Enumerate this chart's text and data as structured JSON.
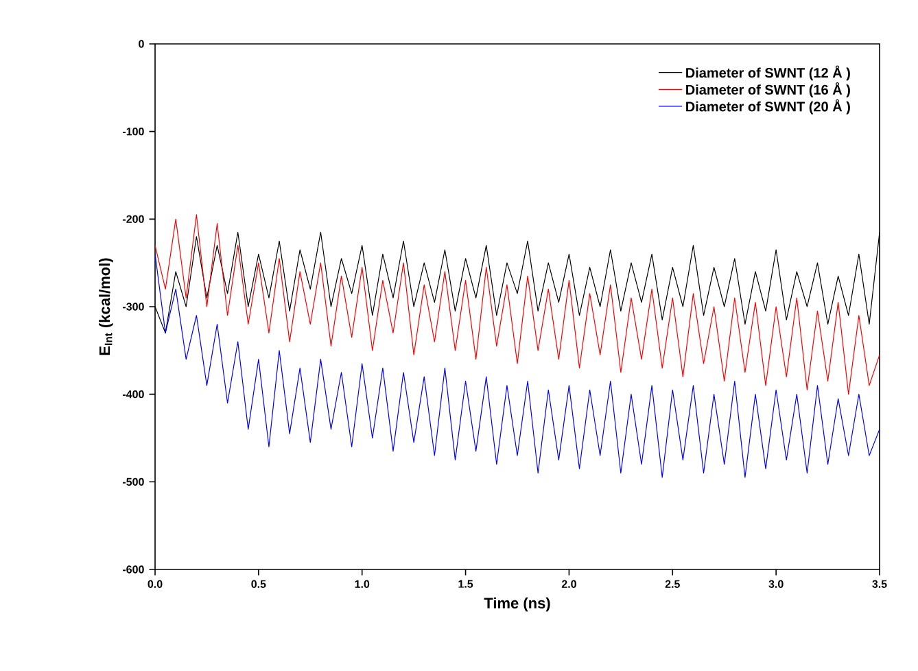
{
  "chart_data": {
    "type": "line",
    "xlabel": "Time (ns)",
    "ylabel": "E$_{Int}$ (kcal/mol)",
    "xlim": [
      0,
      3.5
    ],
    "ylim": [
      -600,
      0
    ],
    "xticks": [
      {
        "value": 0,
        "label": "0.0"
      },
      {
        "value": 0.5,
        "label": "0.5"
      },
      {
        "value": 1,
        "label": "1.0"
      },
      {
        "value": 1.5,
        "label": "1.5"
      },
      {
        "value": 2,
        "label": "2.0"
      },
      {
        "value": 2.5,
        "label": "2.5"
      },
      {
        "value": 3,
        "label": "3.0"
      },
      {
        "value": 3.5,
        "label": "3.5"
      }
    ],
    "yticks": [
      0,
      -100,
      -200,
      -300,
      -400,
      -500,
      -600
    ],
    "x": [
      0,
      0.05,
      0.1,
      0.15,
      0.2,
      0.25,
      0.3,
      0.35,
      0.4,
      0.45,
      0.5,
      0.55,
      0.6,
      0.65,
      0.7,
      0.75,
      0.8,
      0.85,
      0.9,
      0.95,
      1,
      1.05,
      1.1,
      1.15,
      1.2,
      1.25,
      1.3,
      1.35,
      1.4,
      1.45,
      1.5,
      1.55,
      1.6,
      1.65,
      1.7,
      1.75,
      1.8,
      1.85,
      1.9,
      1.95,
      2,
      2.05,
      2.1,
      2.15,
      2.2,
      2.25,
      2.3,
      2.35,
      2.4,
      2.45,
      2.5,
      2.55,
      2.6,
      2.65,
      2.7,
      2.75,
      2.8,
      2.85,
      2.9,
      2.95,
      3,
      3.05,
      3.1,
      3.15,
      3.2,
      3.25,
      3.3,
      3.35,
      3.4,
      3.45,
      3.5
    ],
    "series": [
      {
        "name": "Diameter of SWNT (12 Å )",
        "color": "#000000",
        "values": [
          -300,
          -330,
          -260,
          -300,
          -220,
          -290,
          -230,
          -285,
          -215,
          -300,
          -240,
          -290,
          -225,
          -305,
          -235,
          -280,
          -215,
          -300,
          -245,
          -285,
          -230,
          -310,
          -240,
          -290,
          -225,
          -300,
          -250,
          -295,
          -235,
          -305,
          -245,
          -290,
          -230,
          -310,
          -250,
          -285,
          -225,
          -305,
          -250,
          -295,
          -240,
          -310,
          -255,
          -300,
          -235,
          -305,
          -250,
          -295,
          -240,
          -315,
          -255,
          -300,
          -230,
          -310,
          -255,
          -300,
          -245,
          -320,
          -260,
          -305,
          -235,
          -315,
          -260,
          -300,
          -250,
          -320,
          -265,
          -310,
          -240,
          -320,
          -215
        ]
      },
      {
        "name": "Diameter of SWNT (16 Å )",
        "color": "#ff0000",
        "values": [
          -230,
          -280,
          -200,
          -290,
          -195,
          -300,
          -205,
          -310,
          -230,
          -320,
          -250,
          -330,
          -245,
          -340,
          -260,
          -320,
          -250,
          -345,
          -265,
          -335,
          -255,
          -350,
          -270,
          -330,
          -250,
          -355,
          -275,
          -340,
          -260,
          -350,
          -270,
          -360,
          -255,
          -345,
          -275,
          -365,
          -265,
          -350,
          -280,
          -360,
          -270,
          -370,
          -285,
          -355,
          -275,
          -375,
          -290,
          -360,
          -280,
          -370,
          -290,
          -380,
          -285,
          -365,
          -300,
          -385,
          -290,
          -375,
          -295,
          -390,
          -300,
          -380,
          -290,
          -395,
          -305,
          -385,
          -295,
          -400,
          -310,
          -390,
          -355
        ]
      },
      {
        "name": "Diameter of SWNT (20 Å )",
        "color": "#0000ff",
        "values": [
          -240,
          -330,
          -280,
          -360,
          -310,
          -390,
          -320,
          -410,
          -340,
          -440,
          -360,
          -460,
          -350,
          -445,
          -370,
          -455,
          -360,
          -440,
          -375,
          -460,
          -365,
          -450,
          -370,
          -465,
          -375,
          -455,
          -380,
          -470,
          -370,
          -475,
          -385,
          -465,
          -380,
          -480,
          -390,
          -470,
          -385,
          -490,
          -395,
          -475,
          -390,
          -485,
          -395,
          -470,
          -385,
          -490,
          -400,
          -480,
          -390,
          -495,
          -395,
          -475,
          -390,
          -490,
          -400,
          -480,
          -385,
          -495,
          -400,
          -485,
          -395,
          -475,
          -400,
          -490,
          -390,
          -480,
          -405,
          -470,
          -400,
          -470,
          -440
        ]
      }
    ],
    "legend": "top right",
    "line_style": "solid",
    "marker": "none",
    "grid": false
  }
}
